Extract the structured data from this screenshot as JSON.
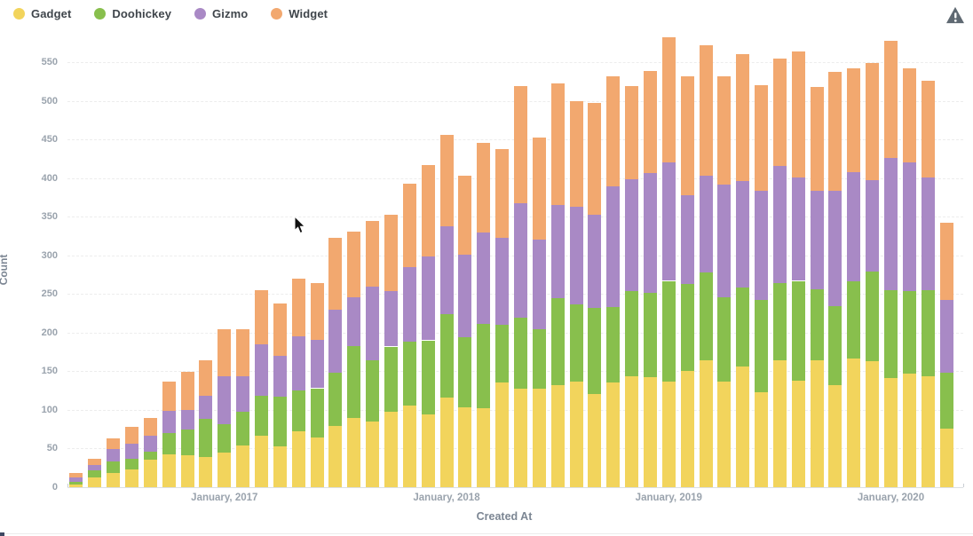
{
  "legend": {
    "items": [
      {
        "label": "Gadget",
        "color": "#F2D45C"
      },
      {
        "label": "Doohickey",
        "color": "#88BF4D"
      },
      {
        "label": "Gizmo",
        "color": "#A989C5"
      },
      {
        "label": "Widget",
        "color": "#F2A86F"
      }
    ]
  },
  "warning_icon": {
    "name": "alert-triangle-icon",
    "color": "#5f6972"
  },
  "chart_data": {
    "type": "bar",
    "stacked": true,
    "title": "",
    "xlabel": "Created At",
    "ylabel": "Count",
    "ylim": [
      0,
      550
    ],
    "y_ticks": [
      0,
      50,
      100,
      150,
      200,
      250,
      300,
      350,
      400,
      450,
      500,
      550
    ],
    "grid": "dashed-horizontal",
    "legend_position": "top-left",
    "categories": [
      "May 2016",
      "June 2016",
      "July 2016",
      "August 2016",
      "September 2016",
      "October 2016",
      "November 2016",
      "December 2016",
      "January 2017",
      "February 2017",
      "March 2017",
      "April 2017",
      "May 2017",
      "June 2017",
      "July 2017",
      "August 2017",
      "September 2017",
      "October 2017",
      "November 2017",
      "December 2017",
      "January 2018",
      "February 2018",
      "March 2018",
      "April 2018",
      "May 2018",
      "June 2018",
      "July 2018",
      "August 2018",
      "September 2018",
      "October 2018",
      "November 2018",
      "December 2018",
      "January 2019",
      "February 2019",
      "March 2019",
      "April 2019",
      "May 2019",
      "June 2019",
      "July 2019",
      "August 2019",
      "September 2019",
      "October 2019",
      "November 2019",
      "December 2019",
      "January 2020",
      "February 2020",
      "March 2020",
      "April 2020"
    ],
    "x_tick_labels": [
      {
        "index": 8,
        "label": "January, 2017"
      },
      {
        "index": 20,
        "label": "January, 2018"
      },
      {
        "index": 32,
        "label": "January, 2019"
      },
      {
        "index": 44,
        "label": "January, 2020"
      }
    ],
    "series": [
      {
        "name": "Gadget",
        "color": "#F2D45C",
        "values": [
          3,
          13,
          18,
          23,
          35,
          43,
          41,
          39,
          45,
          54,
          67,
          53,
          72,
          64,
          79,
          90,
          85,
          98,
          106,
          94,
          116,
          103,
          102,
          136,
          127,
          128,
          132,
          137,
          121,
          135,
          144,
          143,
          137,
          150,
          164,
          137,
          156,
          123,
          164,
          138,
          164,
          132,
          166,
          163,
          141,
          147,
          144,
          76
        ]
      },
      {
        "name": "Doohickey",
        "color": "#88BF4D",
        "values": [
          4,
          9,
          15,
          14,
          11,
          27,
          34,
          49,
          37,
          44,
          51,
          64,
          53,
          64,
          69,
          93,
          79,
          84,
          82,
          96,
          108,
          91,
          109,
          74,
          92,
          77,
          113,
          100,
          111,
          98,
          110,
          109,
          130,
          113,
          114,
          109,
          102,
          119,
          100,
          129,
          92,
          102,
          100,
          116,
          114,
          107,
          111,
          72
        ]
      },
      {
        "name": "Gizmo",
        "color": "#A989C5",
        "values": [
          6,
          7,
          16,
          19,
          21,
          29,
          25,
          30,
          62,
          46,
          67,
          53,
          70,
          62,
          82,
          63,
          96,
          72,
          97,
          108,
          114,
          107,
          119,
          113,
          149,
          115,
          120,
          126,
          121,
          156,
          144,
          154,
          153,
          115,
          125,
          146,
          138,
          142,
          152,
          134,
          127,
          150,
          142,
          118,
          171,
          166,
          146,
          94
        ]
      },
      {
        "name": "Widget",
        "color": "#F2A86F",
        "values": [
          5,
          8,
          14,
          22,
          23,
          38,
          49,
          46,
          60,
          61,
          70,
          68,
          75,
          74,
          93,
          85,
          85,
          99,
          108,
          119,
          118,
          102,
          115,
          115,
          151,
          133,
          157,
          137,
          144,
          143,
          121,
          132,
          162,
          154,
          169,
          140,
          164,
          136,
          139,
          163,
          135,
          154,
          134,
          152,
          152,
          122,
          125,
          100
        ]
      }
    ]
  }
}
